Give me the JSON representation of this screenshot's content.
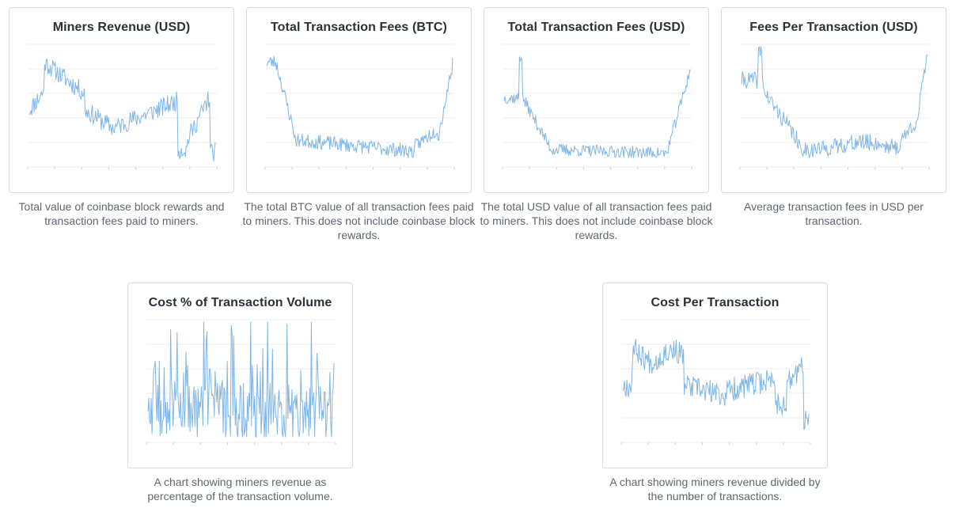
{
  "theme": {
    "line_color": "#7fb6e8",
    "grid_color": "#eceef1",
    "border_color": "#d8dce1"
  },
  "charts": [
    {
      "title": "Miners Revenue (USD)",
      "description": "Total value of coinbase block rewards and transaction fees paid to miners.",
      "chart_data": {
        "type": "line",
        "title": "Miners Revenue (USD)",
        "shape": "miners_revenue"
      }
    },
    {
      "title": "Total Transaction Fees (BTC)",
      "description": "The total BTC value of all transaction fees paid to miners. This does not include coinbase block rewards.",
      "chart_data": {
        "type": "line",
        "title": "Total Transaction Fees (BTC)",
        "shape": "fees_btc"
      }
    },
    {
      "title": "Total Transaction Fees (USD)",
      "description": "The total USD value of all transaction fees paid to miners. This does not include coinbase block rewards.",
      "chart_data": {
        "type": "line",
        "title": "Total Transaction Fees (USD)",
        "shape": "fees_usd"
      }
    },
    {
      "title": "Fees Per Transaction (USD)",
      "description": "Average transaction fees in USD per transaction.",
      "chart_data": {
        "type": "line",
        "title": "Fees Per Transaction (USD)",
        "shape": "fees_per_tx"
      }
    },
    {
      "title": "Cost % of Transaction Volume",
      "description": "A chart showing miners revenue as percentage of the transaction volume.",
      "chart_data": {
        "type": "line",
        "title": "Cost % of Transaction Volume",
        "shape": "cost_pct"
      }
    },
    {
      "title": "Cost Per Transaction",
      "description": "A chart showing miners revenue divided by the number of transactions.",
      "chart_data": {
        "type": "line",
        "title": "Cost Per Transaction",
        "shape": "cost_per_tx"
      }
    }
  ]
}
